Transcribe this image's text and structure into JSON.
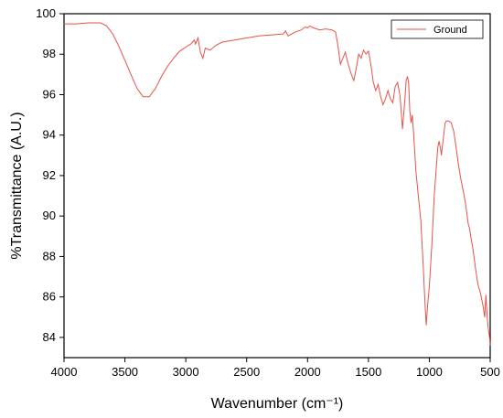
{
  "chart_data": {
    "type": "line",
    "title": "",
    "xlabel": "Wavenumber (cm⁻¹)",
    "ylabel": "%Transmittance (A.U.)",
    "xlim": [
      4000,
      500
    ],
    "ylim": [
      83,
      100
    ],
    "x_reversed": true,
    "x_ticks": [
      4000,
      3500,
      3000,
      2500,
      2000,
      1500,
      1000,
      500
    ],
    "y_ticks": [
      84,
      86,
      88,
      90,
      92,
      94,
      96,
      98,
      100
    ],
    "grid": false,
    "legend_position": "top-right",
    "series": [
      {
        "name": "Ground",
        "color": "#e8524a",
        "points": [
          [
            4000,
            99.5
          ],
          [
            3900,
            99.5
          ],
          [
            3800,
            99.55
          ],
          [
            3700,
            99.55
          ],
          [
            3650,
            99.4
          ],
          [
            3600,
            99.0
          ],
          [
            3550,
            98.4
          ],
          [
            3500,
            97.7
          ],
          [
            3450,
            97.0
          ],
          [
            3400,
            96.3
          ],
          [
            3350,
            95.9
          ],
          [
            3300,
            95.9
          ],
          [
            3250,
            96.3
          ],
          [
            3200,
            96.9
          ],
          [
            3150,
            97.4
          ],
          [
            3100,
            97.8
          ],
          [
            3050,
            98.15
          ],
          [
            3000,
            98.35
          ],
          [
            2960,
            98.5
          ],
          [
            2930,
            98.7
          ],
          [
            2920,
            98.5
          ],
          [
            2900,
            98.8
          ],
          [
            2880,
            98.1
          ],
          [
            2860,
            97.8
          ],
          [
            2840,
            98.3
          ],
          [
            2800,
            98.2
          ],
          [
            2750,
            98.45
          ],
          [
            2700,
            98.6
          ],
          [
            2600,
            98.7
          ],
          [
            2500,
            98.8
          ],
          [
            2400,
            98.9
          ],
          [
            2300,
            98.95
          ],
          [
            2200,
            99.0
          ],
          [
            2180,
            99.15
          ],
          [
            2160,
            98.9
          ],
          [
            2100,
            99.1
          ],
          [
            2050,
            99.2
          ],
          [
            2020,
            99.35
          ],
          [
            2000,
            99.3
          ],
          [
            1980,
            99.4
          ],
          [
            1950,
            99.3
          ],
          [
            1900,
            99.2
          ],
          [
            1850,
            99.25
          ],
          [
            1800,
            99.2
          ],
          [
            1770,
            99.1
          ],
          [
            1750,
            98.4
          ],
          [
            1730,
            97.5
          ],
          [
            1710,
            97.8
          ],
          [
            1690,
            98.1
          ],
          [
            1670,
            97.6
          ],
          [
            1640,
            97.0
          ],
          [
            1620,
            96.7
          ],
          [
            1600,
            97.3
          ],
          [
            1580,
            98.0
          ],
          [
            1560,
            97.8
          ],
          [
            1540,
            98.2
          ],
          [
            1520,
            98.0
          ],
          [
            1500,
            98.15
          ],
          [
            1480,
            97.5
          ],
          [
            1460,
            96.6
          ],
          [
            1440,
            96.2
          ],
          [
            1420,
            96.5
          ],
          [
            1400,
            95.9
          ],
          [
            1380,
            95.5
          ],
          [
            1360,
            95.8
          ],
          [
            1340,
            96.2
          ],
          [
            1320,
            95.8
          ],
          [
            1300,
            95.6
          ],
          [
            1280,
            96.4
          ],
          [
            1260,
            96.6
          ],
          [
            1240,
            95.9
          ],
          [
            1220,
            94.3
          ],
          [
            1200,
            95.8
          ],
          [
            1190,
            96.7
          ],
          [
            1180,
            96.9
          ],
          [
            1170,
            96.6
          ],
          [
            1160,
            95.2
          ],
          [
            1150,
            94.6
          ],
          [
            1140,
            95.0
          ],
          [
            1130,
            94.2
          ],
          [
            1110,
            92.2
          ],
          [
            1090,
            91.0
          ],
          [
            1070,
            89.8
          ],
          [
            1050,
            87.5
          ],
          [
            1035,
            85.6
          ],
          [
            1025,
            84.6
          ],
          [
            1015,
            85.5
          ],
          [
            1000,
            86.5
          ],
          [
            980,
            88.5
          ],
          [
            960,
            91.0
          ],
          [
            940,
            92.6
          ],
          [
            930,
            93.4
          ],
          [
            920,
            93.7
          ],
          [
            910,
            93.4
          ],
          [
            900,
            93.0
          ],
          [
            890,
            93.6
          ],
          [
            880,
            94.1
          ],
          [
            870,
            94.6
          ],
          [
            860,
            94.7
          ],
          [
            840,
            94.7
          ],
          [
            820,
            94.6
          ],
          [
            800,
            94.2
          ],
          [
            780,
            93.4
          ],
          [
            760,
            92.5
          ],
          [
            740,
            91.8
          ],
          [
            720,
            91.2
          ],
          [
            700,
            90.5
          ],
          [
            680,
            89.6
          ],
          [
            670,
            89.4
          ],
          [
            660,
            89.0
          ],
          [
            640,
            88.3
          ],
          [
            620,
            87.4
          ],
          [
            600,
            86.6
          ],
          [
            580,
            86.2
          ],
          [
            560,
            85.6
          ],
          [
            545,
            85.0
          ],
          [
            535,
            86.1
          ],
          [
            525,
            85.0
          ],
          [
            515,
            84.4
          ],
          [
            505,
            84.0
          ],
          [
            500,
            83.6
          ]
        ]
      }
    ]
  }
}
